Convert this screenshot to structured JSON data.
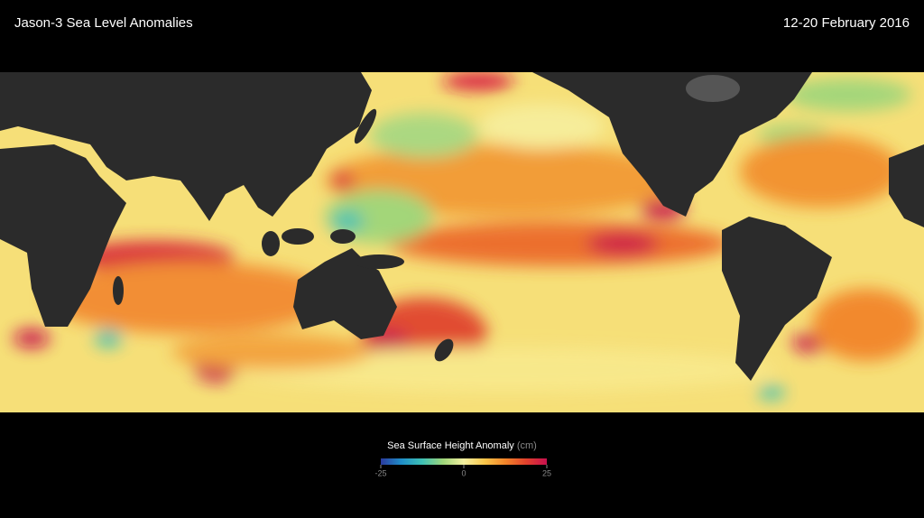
{
  "header": {
    "title": "Jason-3 Sea  Level Anomalies",
    "date": "12-20 February 2016"
  },
  "colorbar": {
    "title": "Sea Surface Height Anomaly",
    "unit": "(cm)",
    "range": [
      -25,
      25
    ],
    "ticks": [
      -25,
      0,
      25
    ],
    "colors": [
      "#2b3a9e",
      "#1f8fc9",
      "#3fc1b5",
      "#9fd67a",
      "#f4f0a0",
      "#f8c64a",
      "#f2852a",
      "#e2412c",
      "#c8104f"
    ]
  }
}
